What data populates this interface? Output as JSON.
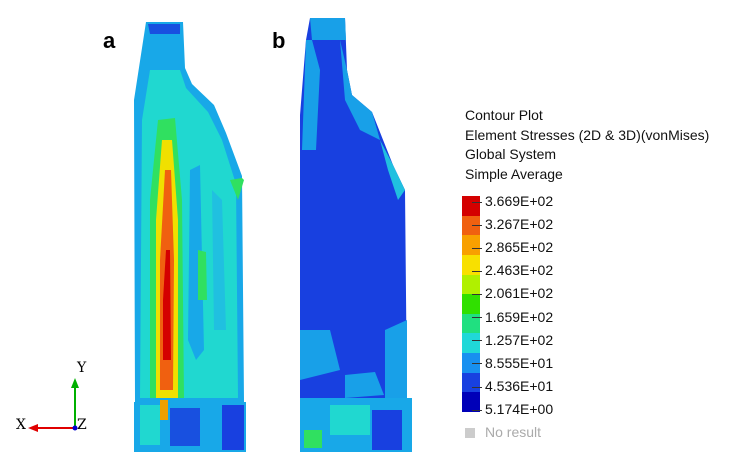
{
  "panels": {
    "a": "a",
    "b": "b"
  },
  "legend": {
    "header": [
      "Contour Plot",
      "Element Stresses (2D & 3D)(vonMises)",
      "Global System",
      "Simple Average"
    ],
    "colors": [
      "#d40000",
      "#f06010",
      "#f8a000",
      "#f8e000",
      "#b0f000",
      "#30e000",
      "#20e080",
      "#20d8d8",
      "#1890f0",
      "#1840e0",
      "#0000b8"
    ],
    "ticks": [
      "3.669E+02",
      "3.267E+02",
      "2.865E+02",
      "2.463E+02",
      "2.061E+02",
      "1.659E+02",
      "1.257E+02",
      "8.555E+01",
      "4.536E+01",
      "5.174E+00"
    ],
    "no_result": "No result"
  },
  "axes": {
    "y": "Y",
    "x": "X",
    "z": "Z"
  }
}
